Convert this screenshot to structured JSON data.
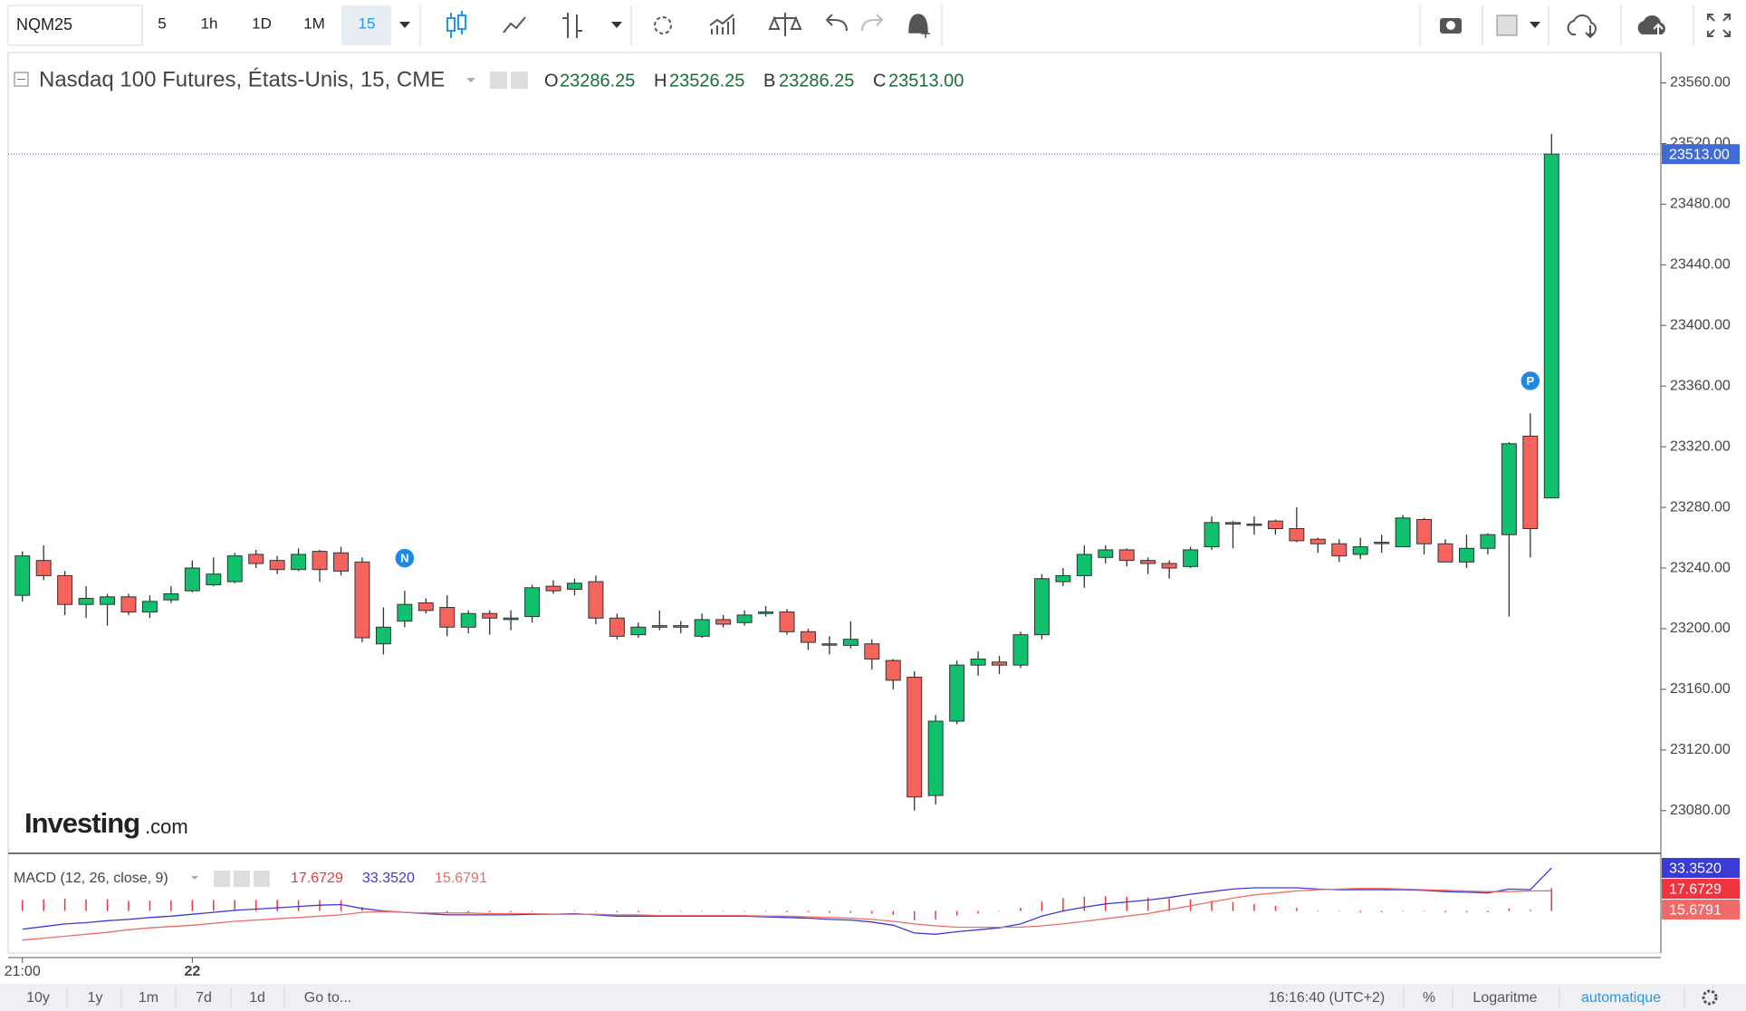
{
  "toolbar": {
    "symbol": "NQM25",
    "intervals": [
      "5",
      "1h",
      "1D",
      "1M",
      "15"
    ]
  },
  "logo": {
    "brand": "Investing",
    "suffix": ".com"
  },
  "chart_data": [
    {
      "type": "candlestick",
      "title": "Nasdaq 100 Futures, États-Unis, 15, CME",
      "ohlc_legend": [
        {
          "label": "O",
          "value": "23286.25"
        },
        {
          "label": "H",
          "value": "23526.25"
        },
        {
          "label": "B",
          "value": "23286.25"
        },
        {
          "label": "C",
          "value": "23513.00"
        }
      ],
      "categories": [
        "21:00",
        null,
        null,
        null,
        null,
        null,
        null,
        null,
        "22",
        null,
        null,
        null,
        null,
        null,
        null,
        null,
        null,
        null,
        null,
        null,
        null,
        null,
        null,
        null,
        null,
        null,
        null,
        null,
        null,
        null,
        null,
        null,
        null,
        null,
        null,
        null,
        null,
        null,
        null,
        null,
        null,
        null,
        null,
        null,
        null,
        null,
        null,
        null,
        null,
        null,
        null,
        null,
        null,
        null,
        null,
        null,
        null,
        null,
        null,
        null,
        null,
        null,
        null,
        null,
        null,
        null,
        null,
        null,
        null,
        null,
        null,
        null,
        null
      ],
      "open": [
        23222,
        23245,
        23235,
        23216,
        23216,
        23221,
        23211,
        23219,
        23225,
        23229,
        23231,
        23249,
        23245,
        23239,
        23251,
        23250,
        23244,
        23190,
        23205,
        23217,
        23214,
        23201,
        23210,
        23206,
        23208,
        23228,
        23226,
        23231,
        23207,
        23196,
        23201,
        23202,
        23195,
        23206,
        23204,
        23210,
        23211,
        23198,
        23190,
        23189,
        23190,
        23179,
        23168,
        23090,
        23139,
        23176,
        23178,
        23176,
        23196,
        23231,
        23235,
        23247,
        23252,
        23245,
        23243,
        23241,
        23254,
        23269,
        23269,
        23271,
        23266,
        23259,
        23256,
        23249,
        23257,
        23254,
        23272,
        23256,
        23244,
        23253,
        23262,
        23327,
        23286.25
      ],
      "high": [
        23251,
        23255,
        23238,
        23228,
        23223,
        23223,
        23222,
        23228,
        23245,
        23247,
        23250,
        23252,
        23248,
        23253,
        23252,
        23254,
        23247,
        23214,
        23225,
        23220,
        23222,
        23212,
        23212,
        23212,
        23229,
        23232,
        23233,
        23235,
        23210,
        23204,
        23212,
        23205,
        23210,
        23209,
        23212,
        23215,
        23213,
        23200,
        23195,
        23205,
        23193,
        23180,
        23172,
        23143,
        23179,
        23185,
        23182,
        23198,
        23236,
        23240,
        23255,
        23255,
        23253,
        23247,
        23245,
        23254,
        23274,
        23271,
        23274,
        23272,
        23280,
        23260,
        23259,
        23260,
        23262,
        23275,
        23273,
        23259,
        23262,
        23263,
        23323,
        23342,
        23526.25
      ],
      "low": [
        23218,
        23232,
        23209,
        23207,
        23202,
        23209,
        23207,
        23217,
        23224,
        23228,
        23230,
        23240,
        23236,
        23238,
        23231,
        23235,
        23191,
        23183,
        23201,
        23210,
        23195,
        23197,
        23196,
        23199,
        23204,
        23223,
        23222,
        23203,
        23193,
        23194,
        23199,
        23197,
        23194,
        23201,
        23202,
        23208,
        23196,
        23186,
        23183,
        23187,
        23173,
        23160,
        23080,
        23084,
        23137,
        23169,
        23170,
        23174,
        23193,
        23228,
        23227,
        23243,
        23241,
        23236,
        23233,
        23240,
        23252,
        23253,
        23262,
        23262,
        23257,
        23250,
        23244,
        23246,
        23250,
        23254,
        23249,
        23244,
        23240,
        23249,
        23208,
        23247,
        23286.25
      ],
      "close": [
        23248,
        23235,
        23216,
        23220,
        23221,
        23211,
        23218,
        23223,
        23240,
        23236,
        23248,
        23243,
        23239,
        23249,
        23239,
        23238,
        23194,
        23201,
        23216,
        23212,
        23201,
        23210,
        23207,
        23207,
        23227,
        23225,
        23230,
        23207,
        23195,
        23201,
        23202,
        23201,
        23206,
        23203,
        23209,
        23211,
        23198,
        23191,
        23190,
        23193,
        23180,
        23166,
        23089,
        23139,
        23176,
        23180,
        23176,
        23196,
        23233,
        23235,
        23249,
        23252,
        23245,
        23243,
        23240,
        23252,
        23270,
        23270,
        23269,
        23266,
        23258,
        23256,
        23248,
        23254,
        23257,
        23273,
        23256,
        23244,
        23253,
        23262,
        23322,
        23266,
        23513
      ],
      "up_color": "#10c06c",
      "down_color": "#f4645c",
      "ylim": [
        23053,
        23580
      ],
      "yticks": [
        {
          "value": 23080,
          "label": "23080.00"
        },
        {
          "value": 23120,
          "label": "23120.00"
        },
        {
          "value": 23160,
          "label": "23160.00"
        },
        {
          "value": 23200,
          "label": "23200.00"
        },
        {
          "value": 23240,
          "label": "23240.00"
        },
        {
          "value": 23280,
          "label": "23280.00"
        },
        {
          "value": 23320,
          "label": "23320.00"
        },
        {
          "value": 23360,
          "label": "23360.00"
        },
        {
          "value": 23400,
          "label": "23400.00"
        },
        {
          "value": 23440,
          "label": "23440.00"
        },
        {
          "value": 23480,
          "label": "23480.00"
        },
        {
          "value": 23520,
          "label": "23520.00"
        },
        {
          "value": 23560,
          "label": "23560.00"
        }
      ],
      "last_price": {
        "value": 23513,
        "label": "23513.00"
      },
      "markers": [
        {
          "label": "N",
          "index": 18
        },
        {
          "label": "P",
          "index": 71
        }
      ],
      "grid": false
    },
    {
      "type": "macd",
      "title": "MACD (12, 26, close, 9)",
      "legend_values": [
        "17.6729",
        "33.3520",
        "15.6791"
      ],
      "ylim": [
        -32.5,
        42.5
      ],
      "series": [
        {
          "type": "histogram",
          "color": "#f0343f",
          "values": [
            8.5,
            9,
            9.5,
            9,
            9,
            8,
            8,
            8,
            8.5,
            8.5,
            8.5,
            8.5,
            8.5,
            8.5,
            8.5,
            8,
            3,
            0.5,
            0,
            -0.5,
            -1.5,
            -1.5,
            -1,
            -1,
            -0.5,
            0,
            0.5,
            -0.5,
            -1,
            -1,
            -0.5,
            -0.5,
            -0.5,
            -0.5,
            -0.5,
            -0.5,
            -1,
            -1,
            -1.5,
            -1.5,
            -2,
            -3,
            -7,
            -6.5,
            -3.5,
            -2,
            -0.5,
            2.5,
            7.5,
            10,
            11,
            11.5,
            11,
            10.5,
            9.5,
            9,
            8,
            7,
            5.5,
            4,
            2.5,
            0.5,
            -0.5,
            -1,
            -1,
            -0.5,
            -0.5,
            -1,
            -1,
            -1,
            2,
            1,
            17.6729
          ]
        },
        {
          "type": "line",
          "color": "#3a3ad6",
          "values": [
            -14,
            -12,
            -10,
            -9,
            -7.5,
            -6.5,
            -5,
            -4,
            -2.5,
            -1,
            0.5,
            1.5,
            2.5,
            3.5,
            4.5,
            5,
            2,
            0,
            -1,
            -2,
            -3,
            -3,
            -3,
            -3,
            -2.5,
            -2.5,
            -2,
            -3,
            -4,
            -4,
            -4,
            -4,
            -4,
            -4,
            -4,
            -4.5,
            -5,
            -5.5,
            -6.5,
            -7,
            -8.5,
            -11,
            -17,
            -18,
            -16,
            -14.5,
            -13,
            -10,
            -4,
            0,
            3,
            5.5,
            7,
            8.5,
            10.5,
            13,
            15,
            17,
            18,
            18,
            18,
            17,
            16.5,
            16.5,
            16.5,
            16.5,
            16,
            15,
            14.5,
            14,
            17,
            16.5,
            33.352
          ]
        },
        {
          "type": "line",
          "color": "#f06a6a",
          "values": [
            -22.5,
            -21,
            -19.5,
            -18,
            -16.5,
            -14.5,
            -13,
            -12,
            -11,
            -9.5,
            -8,
            -7,
            -6,
            -5,
            -4,
            -3,
            -1,
            -0.5,
            -1,
            -1.5,
            -1.5,
            -1.5,
            -2,
            -2,
            -2,
            -2.5,
            -2.5,
            -2.5,
            -3,
            -3,
            -3.5,
            -3.5,
            -3.5,
            -3.5,
            -3.5,
            -4,
            -4,
            -4.5,
            -5,
            -5.5,
            -6.5,
            -8,
            -10,
            -11.5,
            -12.5,
            -12.5,
            -12.5,
            -12.5,
            -11.5,
            -10,
            -8,
            -6,
            -4,
            -2,
            1,
            4,
            7,
            10,
            12.5,
            14,
            15.5,
            16.5,
            17,
            17.5,
            17.5,
            17,
            16.5,
            16,
            15.5,
            15,
            15,
            15.5,
            15.6791
          ]
        }
      ]
    }
  ],
  "bottom_bar": {
    "ranges": [
      "10y",
      "1y",
      "1m",
      "7d",
      "1d",
      "Go to..."
    ],
    "time": "16:16:40 (UTC+2)",
    "percent": "%",
    "log": "Logaritme",
    "auto": "automatique"
  }
}
